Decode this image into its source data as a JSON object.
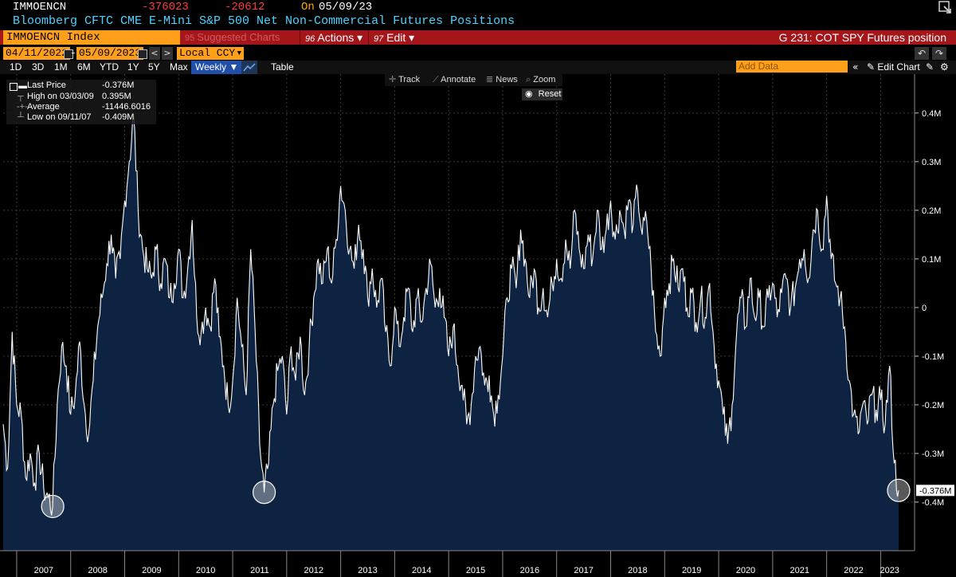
{
  "header": {
    "ticker": "IMMOENCN",
    "last_value": "-376023",
    "change": "-20612",
    "on_label": "On",
    "as_of_date": "05/09/23",
    "title": "Bloomberg CFTC CME E-Mini S&P 500 Net Non-Commercial Futures Positions",
    "security": "IMMOENCN Index",
    "suggested_charts": "Suggested Charts",
    "actions_label": "Actions ▾",
    "edit_label": "Edit ▾",
    "actions_num": "96",
    "edit_num": "97",
    "chart_name": "G 231: COT SPY Futures position"
  },
  "controls": {
    "date_start": "04/11/2022",
    "date_end": "05/09/2023",
    "date_sep": "-",
    "currency": "Local CCY",
    "periods": [
      "1D",
      "3D",
      "1M",
      "6M",
      "YTD",
      "1Y",
      "5Y",
      "Max"
    ],
    "frequency": "Weekly",
    "table_label": "Table",
    "add_data_placeholder": "Add Data",
    "edit_chart_label": "Edit Chart",
    "tools": [
      "Track",
      "Annotate",
      "News",
      "Zoom"
    ],
    "reset_label": "Reset"
  },
  "legend": {
    "items": [
      {
        "label": "Last Price",
        "value": "-0.376M"
      },
      {
        "label": "High on 03/03/09",
        "value": "0.395M"
      },
      {
        "label": "Average",
        "value": "-11446.6016"
      },
      {
        "label": "Low on 09/11/07",
        "value": "-0.409M"
      }
    ]
  },
  "colors": {
    "line": "#ffffff",
    "area_fill": "#0d2341",
    "background": "#000000",
    "grid": "#3a3a3a",
    "last_price_label_bg": "#ffffff"
  },
  "chart_data": {
    "type": "area",
    "frequency": "weekly",
    "x_range": [
      "2006-10",
      "2023-05"
    ],
    "ylim": [
      -0.5,
      0.48
    ],
    "y_unit": "M",
    "y_ticks": [
      "0.4M",
      "0.3M",
      "0.2M",
      "0.1M",
      "0",
      "-0.1M",
      "-0.2M",
      "-0.3M",
      "-0.4M"
    ],
    "y_tick_values": [
      0.4,
      0.3,
      0.2,
      0.1,
      0,
      -0.1,
      -0.2,
      -0.3,
      -0.4
    ],
    "x_tick_labels": [
      "2007",
      "2008",
      "2009",
      "2010",
      "2011",
      "2012",
      "2013",
      "2014",
      "2015",
      "2016",
      "2017",
      "2018",
      "2019",
      "2020",
      "2021",
      "2022",
      "2023"
    ],
    "last_price_label": "-0.376M",
    "grid": true,
    "y_axis_side": "right",
    "highlight_circles": [
      {
        "x": "2007-09",
        "y": -0.409
      },
      {
        "x": "2011-08",
        "y": -0.38
      },
      {
        "x": "2023-05",
        "y": -0.376
      }
    ],
    "series": [
      {
        "points": [
          [
            "2006-10",
            -0.24
          ],
          [
            "2006-11",
            -0.33
          ],
          [
            "2006-12",
            -0.05
          ],
          [
            "2007-01",
            -0.2
          ],
          [
            "2007-02",
            -0.22
          ],
          [
            "2007-03",
            -0.35
          ],
          [
            "2007-04",
            -0.3
          ],
          [
            "2007-05",
            -0.36
          ],
          [
            "2007-06",
            -0.3
          ],
          [
            "2007-07",
            -0.37
          ],
          [
            "2007-08",
            -0.39
          ],
          [
            "2007-09",
            -0.409
          ],
          [
            "2007-10",
            -0.2
          ],
          [
            "2007-11",
            -0.08
          ],
          [
            "2007-12",
            -0.12
          ],
          [
            "2008-01",
            -0.22
          ],
          [
            "2008-02",
            -0.18
          ],
          [
            "2008-03",
            -0.07
          ],
          [
            "2008-04",
            -0.2
          ],
          [
            "2008-05",
            -0.26
          ],
          [
            "2008-06",
            -0.15
          ],
          [
            "2008-07",
            -0.04
          ],
          [
            "2008-08",
            0.02
          ],
          [
            "2008-09",
            0.09
          ],
          [
            "2008-10",
            0.15
          ],
          [
            "2008-11",
            0.06
          ],
          [
            "2008-12",
            0.1
          ],
          [
            "2009-01",
            0.22
          ],
          [
            "2009-02",
            0.3
          ],
          [
            "2009-03",
            0.395
          ],
          [
            "2009-04",
            0.2
          ],
          [
            "2009-05",
            0.12
          ],
          [
            "2009-06",
            0.08
          ],
          [
            "2009-07",
            0.06
          ],
          [
            "2009-08",
            0.12
          ],
          [
            "2009-09",
            0.05
          ],
          [
            "2009-10",
            0.1
          ],
          [
            "2009-11",
            0.02
          ],
          [
            "2009-12",
            0.05
          ],
          [
            "2010-01",
            0.12
          ],
          [
            "2010-02",
            0.02
          ],
          [
            "2010-03",
            0.08
          ],
          [
            "2010-04",
            0.18
          ],
          [
            "2010-05",
            -0.02
          ],
          [
            "2010-06",
            -0.05
          ],
          [
            "2010-07",
            0.0
          ],
          [
            "2010-08",
            -0.04
          ],
          [
            "2010-09",
            0.06
          ],
          [
            "2010-10",
            -0.06
          ],
          [
            "2010-11",
            -0.12
          ],
          [
            "2010-12",
            -0.2
          ],
          [
            "2011-01",
            -0.15
          ],
          [
            "2011-02",
            0.02
          ],
          [
            "2011-03",
            -0.08
          ],
          [
            "2011-04",
            -0.18
          ],
          [
            "2011-05",
            0.12
          ],
          [
            "2011-06",
            -0.05
          ],
          [
            "2011-07",
            -0.28
          ],
          [
            "2011-08",
            -0.38
          ],
          [
            "2011-09",
            -0.32
          ],
          [
            "2011-10",
            -0.2
          ],
          [
            "2011-11",
            -0.13
          ],
          [
            "2011-12",
            -0.1
          ],
          [
            "2012-01",
            -0.22
          ],
          [
            "2012-02",
            -0.08
          ],
          [
            "2012-03",
            -0.15
          ],
          [
            "2012-04",
            -0.06
          ],
          [
            "2012-05",
            -0.18
          ],
          [
            "2012-06",
            -0.08
          ],
          [
            "2012-07",
            0.02
          ],
          [
            "2012-08",
            0.1
          ],
          [
            "2012-09",
            0.05
          ],
          [
            "2012-10",
            0.12
          ],
          [
            "2012-11",
            0.05
          ],
          [
            "2012-12",
            0.14
          ],
          [
            "2013-01",
            0.25
          ],
          [
            "2013-02",
            0.2
          ],
          [
            "2013-03",
            0.12
          ],
          [
            "2013-04",
            0.08
          ],
          [
            "2013-05",
            0.17
          ],
          [
            "2013-06",
            0.12
          ],
          [
            "2013-07",
            0.02
          ],
          [
            "2013-08",
            0.08
          ],
          [
            "2013-09",
            0.0
          ],
          [
            "2013-10",
            0.06
          ],
          [
            "2013-11",
            -0.05
          ],
          [
            "2013-12",
            -0.12
          ],
          [
            "2014-01",
            0.0
          ],
          [
            "2014-02",
            -0.08
          ],
          [
            "2014-03",
            -0.02
          ],
          [
            "2014-04",
            0.04
          ],
          [
            "2014-05",
            -0.05
          ],
          [
            "2014-06",
            0.02
          ],
          [
            "2014-07",
            -0.03
          ],
          [
            "2014-08",
            0.04
          ],
          [
            "2014-09",
            0.09
          ],
          [
            "2014-10",
            0.0
          ],
          [
            "2014-11",
            0.04
          ],
          [
            "2014-12",
            -0.02
          ],
          [
            "2015-01",
            -0.1
          ],
          [
            "2015-02",
            -0.04
          ],
          [
            "2015-03",
            -0.12
          ],
          [
            "2015-04",
            -0.16
          ],
          [
            "2015-05",
            -0.24
          ],
          [
            "2015-06",
            -0.2
          ],
          [
            "2015-07",
            -0.1
          ],
          [
            "2015-08",
            -0.08
          ],
          [
            "2015-09",
            -0.16
          ],
          [
            "2015-10",
            -0.14
          ],
          [
            "2015-11",
            -0.22
          ],
          [
            "2015-12",
            -0.18
          ],
          [
            "2016-01",
            -0.1
          ],
          [
            "2016-02",
            0.02
          ],
          [
            "2016-03",
            0.08
          ],
          [
            "2016-04",
            0.04
          ],
          [
            "2016-05",
            0.16
          ],
          [
            "2016-06",
            0.1
          ],
          [
            "2016-07",
            0.02
          ],
          [
            "2016-08",
            0.08
          ],
          [
            "2016-09",
            0.0
          ],
          [
            "2016-10",
            0.04
          ],
          [
            "2016-11",
            -0.02
          ],
          [
            "2016-12",
            0.05
          ],
          [
            "2017-01",
            0.1
          ],
          [
            "2017-02",
            0.06
          ],
          [
            "2017-03",
            0.14
          ],
          [
            "2017-04",
            0.08
          ],
          [
            "2017-05",
            0.2
          ],
          [
            "2017-06",
            0.12
          ],
          [
            "2017-07",
            0.08
          ],
          [
            "2017-08",
            0.15
          ],
          [
            "2017-09",
            0.1
          ],
          [
            "2017-10",
            0.2
          ],
          [
            "2017-11",
            0.12
          ],
          [
            "2017-12",
            0.16
          ],
          [
            "2018-01",
            0.22
          ],
          [
            "2018-02",
            0.14
          ],
          [
            "2018-03",
            0.2
          ],
          [
            "2018-04",
            0.16
          ],
          [
            "2018-05",
            0.22
          ],
          [
            "2018-06",
            0.17
          ],
          [
            "2018-07",
            0.24
          ],
          [
            "2018-08",
            0.15
          ],
          [
            "2018-09",
            0.18
          ],
          [
            "2018-10",
            0.08
          ],
          [
            "2018-11",
            -0.05
          ],
          [
            "2018-12",
            -0.1
          ],
          [
            "2019-01",
            0.02
          ],
          [
            "2019-02",
            0.05
          ],
          [
            "2019-03",
            0.1
          ],
          [
            "2019-04",
            0.04
          ],
          [
            "2019-05",
            0.08
          ],
          [
            "2019-06",
            0.0
          ],
          [
            "2019-07",
            0.03
          ],
          [
            "2019-08",
            -0.03
          ],
          [
            "2019-09",
            0.02
          ],
          [
            "2019-10",
            -0.02
          ],
          [
            "2019-11",
            0.05
          ],
          [
            "2019-12",
            -0.08
          ],
          [
            "2020-01",
            -0.15
          ],
          [
            "2020-02",
            -0.22
          ],
          [
            "2020-03",
            -0.28
          ],
          [
            "2020-04",
            -0.2
          ],
          [
            "2020-05",
            -0.05
          ],
          [
            "2020-06",
            0.02
          ],
          [
            "2020-07",
            -0.04
          ],
          [
            "2020-08",
            0.06
          ],
          [
            "2020-09",
            -0.02
          ],
          [
            "2020-10",
            0.02
          ],
          [
            "2020-11",
            -0.04
          ],
          [
            "2020-12",
            0.02
          ],
          [
            "2021-01",
            0.05
          ],
          [
            "2021-02",
            -0.02
          ],
          [
            "2021-03",
            0.03
          ],
          [
            "2021-04",
            0.06
          ],
          [
            "2021-05",
            0.0
          ],
          [
            "2021-06",
            0.04
          ],
          [
            "2021-07",
            0.1
          ],
          [
            "2021-08",
            0.12
          ],
          [
            "2021-09",
            0.06
          ],
          [
            "2021-10",
            0.16
          ],
          [
            "2021-11",
            0.2
          ],
          [
            "2021-12",
            0.12
          ],
          [
            "2022-01",
            0.23
          ],
          [
            "2022-02",
            0.1
          ],
          [
            "2022-03",
            0.05
          ],
          [
            "2022-04",
            0.02
          ],
          [
            "2022-05",
            -0.04
          ],
          [
            "2022-06",
            -0.15
          ],
          [
            "2022-07",
            -0.22
          ],
          [
            "2022-08",
            -0.26
          ],
          [
            "2022-09",
            -0.2
          ],
          [
            "2022-10",
            -0.24
          ],
          [
            "2022-11",
            -0.18
          ],
          [
            "2022-12",
            -0.21
          ],
          [
            "2023-01",
            -0.19
          ],
          [
            "2023-02",
            -0.24
          ],
          [
            "2023-03",
            -0.12
          ],
          [
            "2023-04",
            -0.32
          ],
          [
            "2023-05",
            -0.376
          ]
        ]
      }
    ]
  }
}
